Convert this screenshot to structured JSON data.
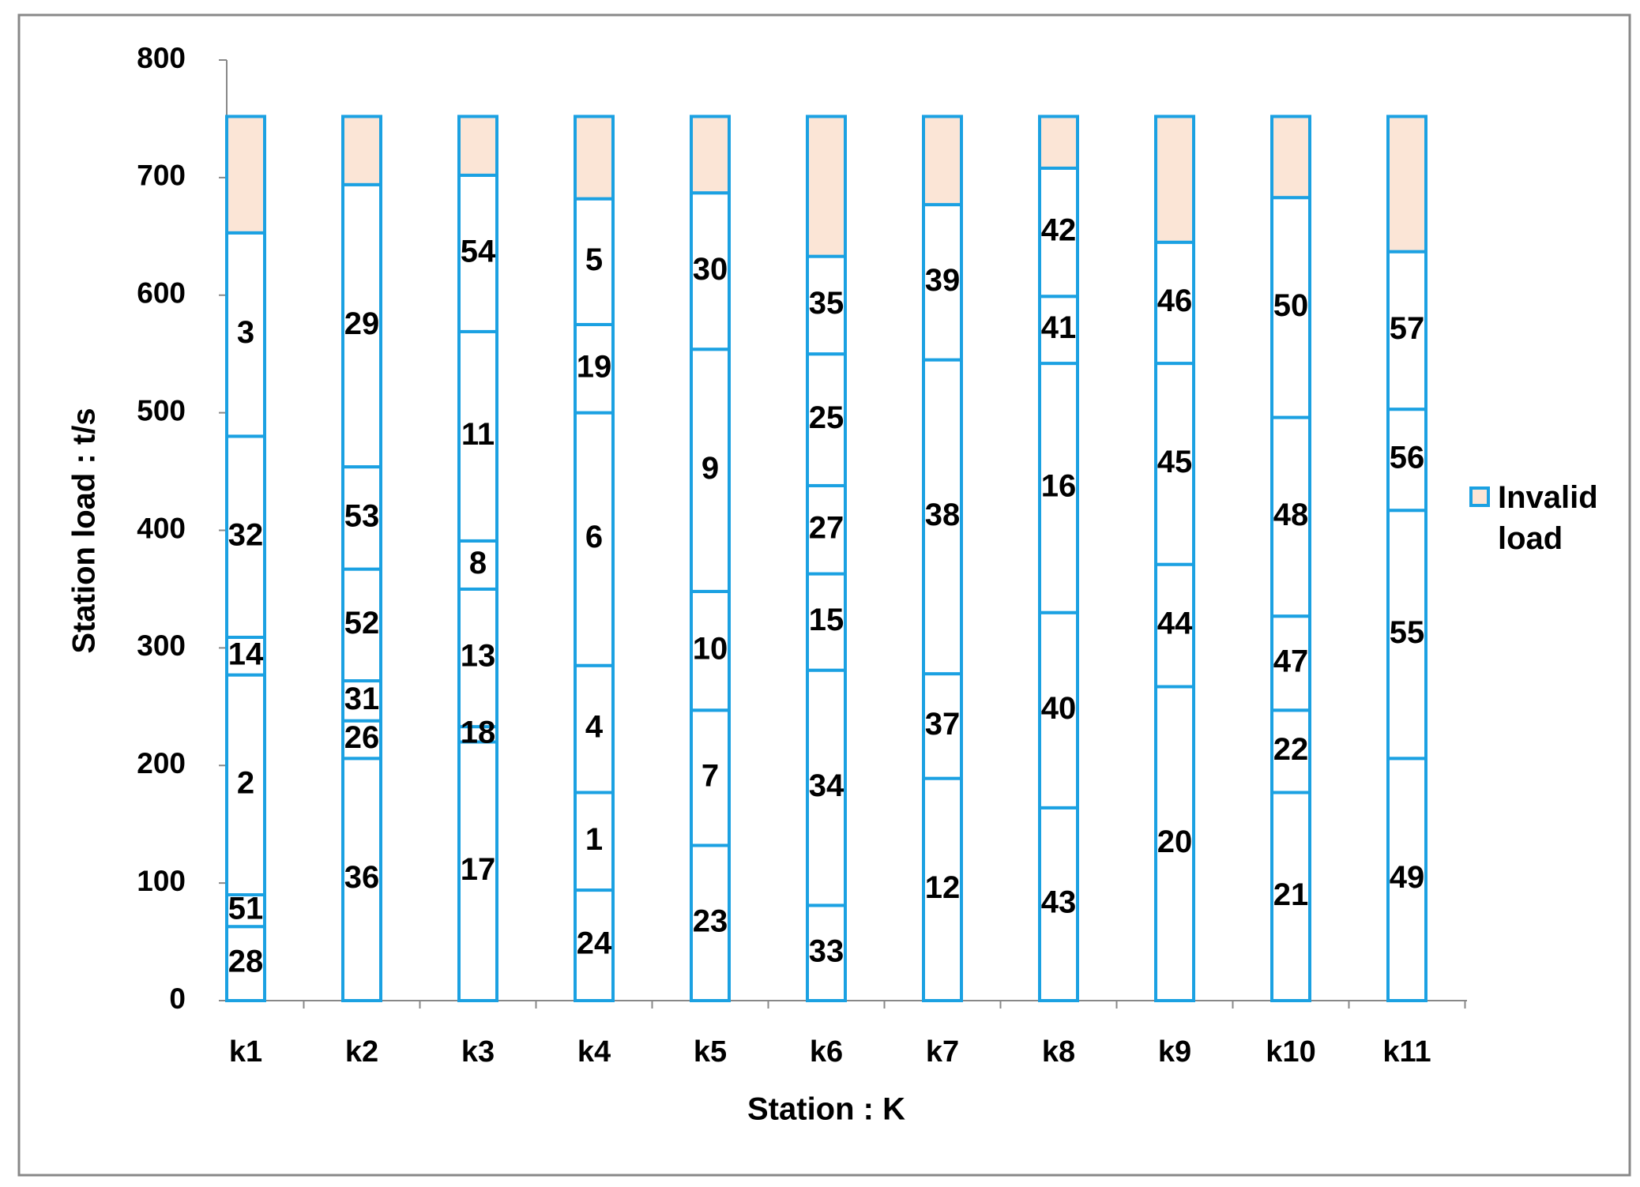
{
  "chart_data": {
    "type": "bar",
    "stacked": true,
    "xlabel": "Station : K",
    "ylabel": "Station load : t/s",
    "ylim": [
      0,
      800
    ],
    "yticks": [
      0,
      100,
      200,
      300,
      400,
      500,
      600,
      700,
      800
    ],
    "categories": [
      "k1",
      "k2",
      "k3",
      "k4",
      "k5",
      "k6",
      "k7",
      "k8",
      "k9",
      "k10",
      "k11"
    ],
    "segments": [
      [
        {
          "task": "28",
          "value": 63
        },
        {
          "task": "51",
          "value": 27
        },
        {
          "task": "2",
          "value": 187
        },
        {
          "task": "14",
          "value": 32
        },
        {
          "task": "32",
          "value": 171
        },
        {
          "task": "3",
          "value": 173
        }
      ],
      [
        {
          "task": "36",
          "value": 206
        },
        {
          "task": "26",
          "value": 32
        },
        {
          "task": "31",
          "value": 34
        },
        {
          "task": "52",
          "value": 95
        },
        {
          "task": "53",
          "value": 87
        },
        {
          "task": "29",
          "value": 240
        }
      ],
      [
        {
          "task": "17",
          "value": 220
        },
        {
          "task": "18",
          "value": 13
        },
        {
          "task": "13",
          "value": 117
        },
        {
          "task": "8",
          "value": 41
        },
        {
          "task": "11",
          "value": 178
        },
        {
          "task": "54",
          "value": 133
        }
      ],
      [
        {
          "task": "24",
          "value": 94
        },
        {
          "task": "1",
          "value": 83
        },
        {
          "task": "4",
          "value": 108
        },
        {
          "task": "6",
          "value": 215
        },
        {
          "task": "19",
          "value": 75
        },
        {
          "task": "5",
          "value": 107
        }
      ],
      [
        {
          "task": "23",
          "value": 132
        },
        {
          "task": "7",
          "value": 115
        },
        {
          "task": "10",
          "value": 101
        },
        {
          "task": "9",
          "value": 206
        },
        {
          "task": "30",
          "value": 133
        }
      ],
      [
        {
          "task": "33",
          "value": 81
        },
        {
          "task": "34",
          "value": 200
        },
        {
          "task": "15",
          "value": 82
        },
        {
          "task": "27",
          "value": 75
        },
        {
          "task": "25",
          "value": 112
        },
        {
          "task": "35",
          "value": 83
        }
      ],
      [
        {
          "task": "12",
          "value": 189
        },
        {
          "task": "37",
          "value": 89
        },
        {
          "task": "38",
          "value": 267
        },
        {
          "task": "39",
          "value": 132
        }
      ],
      [
        {
          "task": "43",
          "value": 164
        },
        {
          "task": "40",
          "value": 166
        },
        {
          "task": "16",
          "value": 212
        },
        {
          "task": "41",
          "value": 57
        },
        {
          "task": "42",
          "value": 109
        }
      ],
      [
        {
          "task": "20",
          "value": 267
        },
        {
          "task": "44",
          "value": 104
        },
        {
          "task": "45",
          "value": 171
        },
        {
          "task": "46",
          "value": 103
        }
      ],
      [
        {
          "task": "21",
          "value": 177
        },
        {
          "task": "22",
          "value": 70
        },
        {
          "task": "47",
          "value": 80
        },
        {
          "task": "48",
          "value": 169
        },
        {
          "task": "50",
          "value": 187
        }
      ],
      [
        {
          "task": "49",
          "value": 206
        },
        {
          "task": "55",
          "value": 211
        },
        {
          "task": "56",
          "value": 86
        },
        {
          "task": "57",
          "value": 134
        }
      ]
    ],
    "series": [
      {
        "name": "Invalid load",
        "color": "#fbe5d6",
        "values": [
          99,
          58,
          50,
          70,
          65,
          119,
          75,
          44,
          107,
          69,
          115
        ]
      }
    ],
    "edge_color": "#1ba1e2",
    "legend": "right"
  }
}
